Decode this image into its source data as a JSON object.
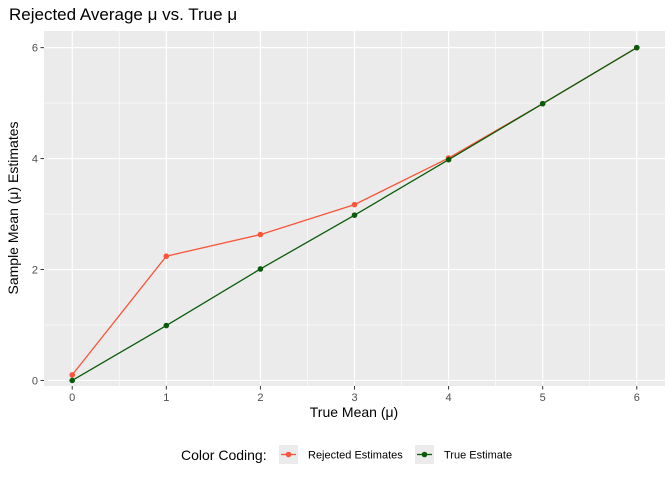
{
  "chart_data": {
    "type": "line",
    "title": "Rejected Average μ vs. True μ",
    "xlabel": "True Mean (μ)",
    "ylabel": "Sample Mean (μ) Estimates",
    "xlim": [
      -0.3,
      6.3
    ],
    "ylim": [
      -0.1,
      6.3
    ],
    "xticks": [
      0,
      1,
      2,
      3,
      4,
      5,
      6
    ],
    "yticks": [
      0,
      2,
      4,
      6
    ],
    "grid": true,
    "legend_position": "bottom",
    "legend_title": "Color Coding:",
    "x": [
      0,
      1,
      2,
      3,
      4,
      5,
      6
    ],
    "series": [
      {
        "name": "Rejected Estimates",
        "color": "#F8553B",
        "values": [
          0.1,
          2.24,
          2.63,
          3.17,
          4.01,
          4.99,
          6.0
        ]
      },
      {
        "name": "True Estimate",
        "color": "#0B5A0B",
        "values": [
          0.0,
          0.99,
          2.01,
          2.98,
          3.98,
          4.99,
          6.0
        ]
      }
    ]
  },
  "colors": {
    "panel_bg": "#EBEBEB",
    "grid": "#FFFFFF",
    "tick": "#333333"
  }
}
